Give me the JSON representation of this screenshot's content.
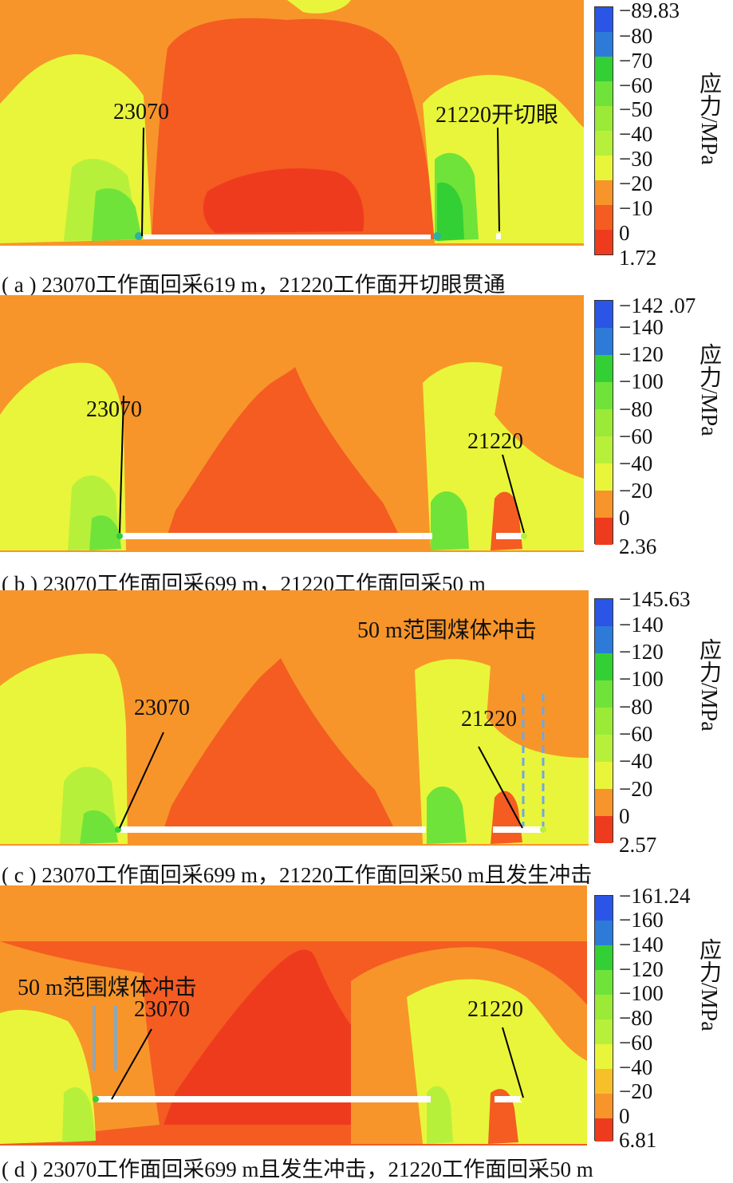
{
  "colors": {
    "red": "#ee3b1e",
    "red_orange": "#f45c22",
    "orange": "#f7952a",
    "yellow": "#e9f53a",
    "yellow_green": "#b7f03a",
    "green": "#6fe33a",
    "bright_green": "#33d035",
    "blue": "#2a55e6",
    "mid_blue": "#2e7ad8",
    "teal": "#2fb1a0",
    "panel_line": "#ffffff",
    "marker_blue": "#6fa6e8"
  },
  "unit_label": "应力/MPa",
  "panels": [
    {
      "caption": "( a ) 23070工作面回采619 m，21220工作面开切眼贯通",
      "colorbar_ticks": [
        "−89.83",
        "−80",
        "−70",
        "−60",
        "−50",
        "−40",
        "−30",
        "−20",
        "−10",
        "0",
        "1.72"
      ],
      "face_left_label": "23070",
      "face_right_label": "21220开切眼"
    },
    {
      "caption": "( b ) 23070工作面回采699 m，21220工作面回采50 m",
      "colorbar_ticks": [
        "−142 .07",
        "−140",
        "−120",
        "−100",
        "−80",
        "−60",
        "−40",
        "−20",
        "0",
        "2.36"
      ],
      "face_left_label": "23070",
      "face_right_label": "21220"
    },
    {
      "caption": "( c ) 23070工作面回采699 m，21220工作面回采50 m且发生冲击",
      "colorbar_ticks": [
        "−145.63",
        "−140",
        "−120",
        "−100",
        "−80",
        "−60",
        "−40",
        "−20",
        "0",
        "2.57"
      ],
      "face_left_label": "23070",
      "face_right_label": "21220",
      "impact_label": "50 m范围煤体冲击"
    },
    {
      "caption": "( d ) 23070工作面回采699 m且发生冲击，21220工作面回采50 m",
      "colorbar_ticks": [
        "−161.24",
        "−160",
        "−140",
        "−120",
        "−100",
        "−80",
        "−60",
        "−40",
        "−20",
        "0",
        "6.81"
      ],
      "face_left_label": "23070",
      "face_right_label": "21220",
      "impact_label": "50 m范围煤体冲击"
    }
  ]
}
